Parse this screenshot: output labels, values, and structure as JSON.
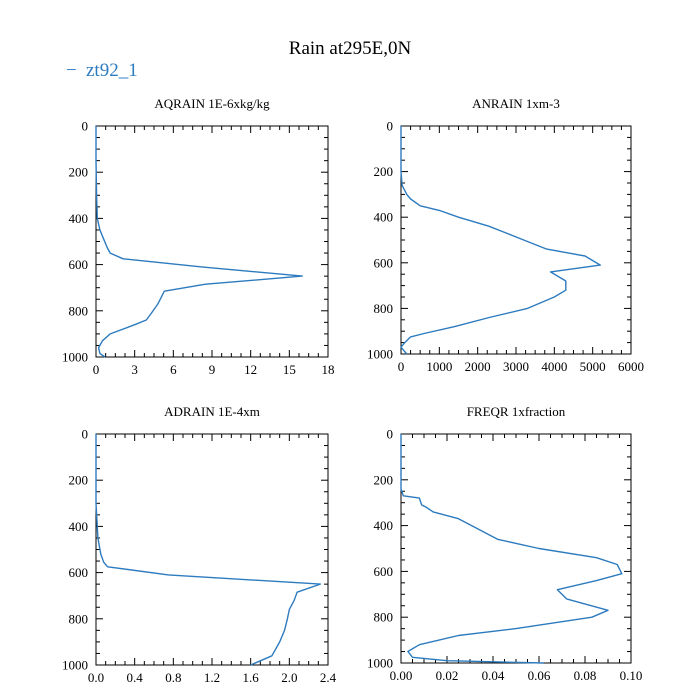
{
  "title": "Rain at295E,0N",
  "legend": {
    "label": "zt92_1",
    "marker": "−",
    "color": "#2d7bbf"
  },
  "chart_data": [
    {
      "type": "line",
      "title": "AQRAIN  1E-6xkg/kg",
      "xlim": [
        0,
        18
      ],
      "ylim": [
        0,
        1000
      ],
      "y_inverted": true,
      "xticks": [
        0,
        3,
        6,
        9,
        12,
        15,
        18
      ],
      "xtick_labels": [
        "0",
        "3",
        "6",
        "9",
        "12",
        "15",
        "18"
      ],
      "yticks": [
        0,
        200,
        400,
        600,
        800,
        1000
      ],
      "ytick_labels": [
        "0",
        "200",
        "400",
        "600",
        "800",
        "1000"
      ],
      "series": [
        {
          "name": "zt92_1",
          "x": [
            0,
            0,
            0.05,
            0.1,
            0.3,
            0.6,
            0.9,
            1.1,
            2.1,
            8.2,
            16.0,
            8.5,
            5.3,
            4.8,
            4.3,
            3.9,
            3.0,
            1.1,
            0.5,
            0.2,
            0.3,
            0.7
          ],
          "y": [
            0,
            150,
            300,
            400,
            450,
            490,
            530,
            550,
            575,
            610,
            650,
            685,
            715,
            770,
            810,
            840,
            860,
            900,
            930,
            960,
            985,
            1000
          ]
        }
      ]
    },
    {
      "type": "line",
      "title": "ANRAIN  1xm-3",
      "xlim": [
        0,
        6000
      ],
      "ylim": [
        0,
        1000
      ],
      "y_inverted": true,
      "xticks": [
        0,
        1000,
        2000,
        3000,
        4000,
        5000,
        6000
      ],
      "xtick_labels": [
        "0",
        "1000",
        "2000",
        "3000",
        "4000",
        "5000",
        "6000"
      ],
      "yticks": [
        0,
        200,
        400,
        600,
        800,
        1000
      ],
      "ytick_labels": [
        "0",
        "200",
        "400",
        "600",
        "800",
        "1000"
      ],
      "series": [
        {
          "name": "zt92_1",
          "x": [
            0,
            0,
            30,
            150,
            250,
            500,
            1000,
            1500,
            2300,
            2600,
            3200,
            3800,
            4800,
            5200,
            3900,
            4300,
            4300,
            4000,
            3300,
            2300,
            1400,
            600,
            250,
            100,
            0,
            150
          ],
          "y": [
            0,
            200,
            260,
            300,
            320,
            350,
            370,
            400,
            440,
            460,
            500,
            540,
            570,
            610,
            640,
            680,
            720,
            750,
            800,
            840,
            880,
            910,
            925,
            950,
            970,
            1000
          ]
        }
      ]
    },
    {
      "type": "line",
      "title": "ADRAIN  1E-4xm",
      "xlim": [
        0,
        2.4
      ],
      "ylim": [
        0,
        1000
      ],
      "y_inverted": true,
      "xticks": [
        0,
        0.4,
        0.8,
        1.2,
        1.6,
        2.0,
        2.4
      ],
      "xtick_labels": [
        "0.0",
        "0.4",
        "0.8",
        "1.2",
        "1.6",
        "2.0",
        "2.4"
      ],
      "yticks": [
        0,
        200,
        400,
        600,
        800,
        1000
      ],
      "ytick_labels": [
        "0",
        "200",
        "400",
        "600",
        "800",
        "1000"
      ],
      "series": [
        {
          "name": "zt92_1",
          "x": [
            0,
            0,
            0.02,
            0.05,
            0.08,
            0.12,
            0.75,
            2.32,
            2.08,
            2.05,
            2.0,
            1.98,
            1.95,
            1.9,
            1.82,
            1.6
          ],
          "y": [
            0,
            300,
            450,
            520,
            555,
            575,
            610,
            650,
            685,
            720,
            760,
            800,
            850,
            900,
            960,
            1000
          ]
        }
      ]
    },
    {
      "type": "line",
      "title": "FREQR  1xfraction",
      "xlim": [
        0,
        0.1
      ],
      "ylim": [
        0,
        1000
      ],
      "y_inverted": true,
      "xticks": [
        0,
        0.02,
        0.04,
        0.06,
        0.08,
        0.1
      ],
      "xtick_labels": [
        "0.00",
        "0.02",
        "0.04",
        "0.06",
        "0.08",
        "0.10"
      ],
      "yticks": [
        0,
        200,
        400,
        600,
        800,
        1000
      ],
      "ytick_labels": [
        "0",
        "200",
        "400",
        "600",
        "800",
        "1000"
      ],
      "series": [
        {
          "name": "zt92_1",
          "x": [
            0,
            0,
            0.001,
            0.008,
            0.009,
            0.011,
            0.014,
            0.025,
            0.042,
            0.06,
            0.085,
            0.094,
            0.096,
            0.085,
            0.068,
            0.072,
            0.09,
            0.083,
            0.05,
            0.025,
            0.008,
            0.003,
            0.005,
            0.02,
            0.062
          ],
          "y": [
            0,
            240,
            270,
            280,
            310,
            320,
            340,
            370,
            460,
            500,
            540,
            570,
            610,
            640,
            680,
            720,
            770,
            800,
            850,
            880,
            920,
            950,
            975,
            990,
            1000
          ]
        }
      ]
    }
  ]
}
